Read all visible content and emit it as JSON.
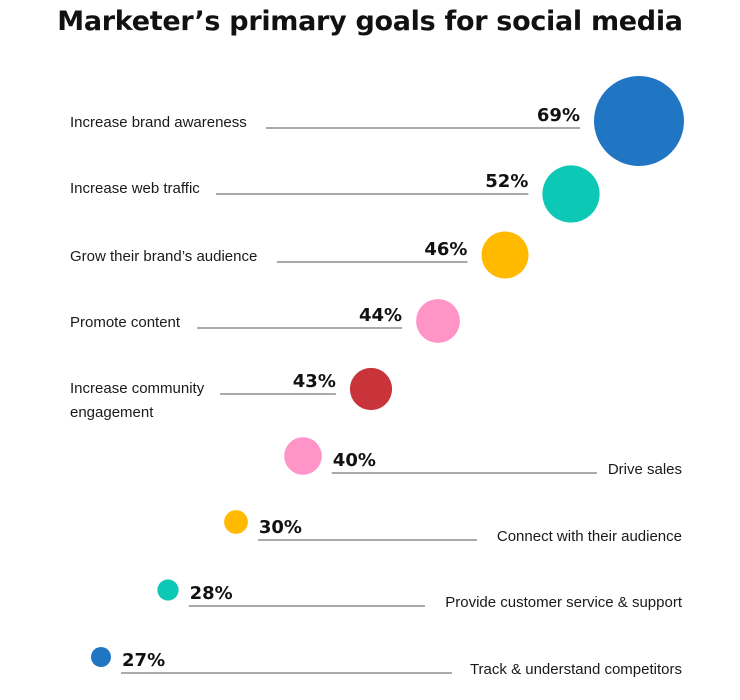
{
  "chart_data": {
    "type": "bubble",
    "title": "Marketer’s primary goals for social media",
    "unit": "%",
    "categories": [
      "Increase brand awareness",
      "Increase web traffic",
      "Grow their brand’s audience",
      "Promote content",
      "Increase community engagement",
      "Drive sales",
      "Connect with their audience",
      "Provide customer service & support",
      "Track & understand competitors"
    ],
    "label_lines": [
      [
        "Increase brand awareness"
      ],
      [
        "Increase web traffic"
      ],
      [
        "Grow their brand’s audience"
      ],
      [
        "Promote content"
      ],
      [
        "Increase community",
        "engagement"
      ],
      [
        "Drive sales"
      ],
      [
        "Connect with their audience"
      ],
      [
        "Provide customer service & support"
      ],
      [
        "Track & understand competitors"
      ]
    ],
    "values": [
      69,
      52,
      46,
      44,
      43,
      40,
      30,
      28,
      27
    ],
    "value_labels": [
      "69%",
      "52%",
      "46%",
      "44%",
      "43%",
      "40%",
      "30%",
      "28%",
      "27%"
    ],
    "colors": [
      "#2176C4",
      "#0CC8B4",
      "#FFBA00",
      "#FF94C6",
      "#C8343A",
      "#FF94C6",
      "#FFBA00",
      "#0CC8B4",
      "#2176C4"
    ],
    "line_color": "#555555"
  }
}
